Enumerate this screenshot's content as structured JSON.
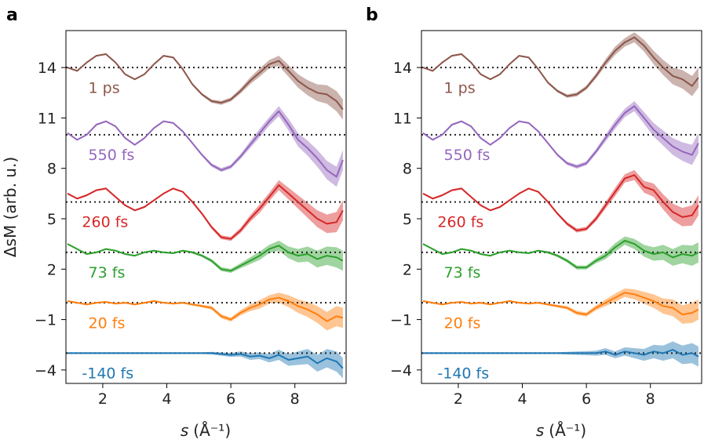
{
  "chart_data": [
    {
      "type": "line",
      "panel": "a",
      "xlabel": "s (Å⁻¹)",
      "xlabel_italic": "s",
      "xlabel_unit": "(Å⁻¹)",
      "ylabel": "ΔsM (arb. u.)",
      "xlim": [
        0.85,
        9.6
      ],
      "ylim": [
        -4.8,
        16.2
      ],
      "xticks": [
        2,
        4,
        6,
        8
      ],
      "xtick_labels": [
        "2",
        "4",
        "6",
        "8"
      ],
      "yticks": [
        -4,
        -1,
        2,
        5,
        8,
        11,
        14
      ],
      "ytick_labels": [
        "−4",
        "−1",
        "2",
        "5",
        "8",
        "11",
        "14"
      ],
      "x": [
        0.9,
        1.2,
        1.5,
        1.8,
        2.1,
        2.4,
        2.7,
        3.0,
        3.3,
        3.6,
        3.9,
        4.2,
        4.5,
        4.8,
        5.1,
        5.4,
        5.7,
        6.0,
        6.3,
        6.6,
        6.9,
        7.2,
        7.5,
        7.8,
        8.1,
        8.4,
        8.7,
        9.0,
        9.3,
        9.5
      ],
      "series": [
        {
          "name": "-140 fs",
          "label": "-140 fs",
          "color": "#1f77b4",
          "baseline": -3.0,
          "values": [
            -3.0,
            -3.0,
            -3.0,
            -3.0,
            -3.0,
            -3.0,
            -3.0,
            -3.0,
            -3.0,
            -3.0,
            -3.0,
            -3.0,
            -3.0,
            -3.0,
            -3.0,
            -3.0,
            -3.05,
            -3.1,
            -3.05,
            -3.2,
            -3.15,
            -3.3,
            -3.1,
            -3.4,
            -3.3,
            -3.2,
            -3.6,
            -3.3,
            -3.5,
            -3.9
          ],
          "band": [
            0.05,
            0.05,
            0.05,
            0.05,
            0.05,
            0.05,
            0.05,
            0.05,
            0.05,
            0.05,
            0.05,
            0.05,
            0.05,
            0.05,
            0.05,
            0.08,
            0.1,
            0.12,
            0.15,
            0.2,
            0.2,
            0.25,
            0.3,
            0.35,
            0.4,
            0.45,
            0.5,
            0.55,
            0.6,
            0.6
          ]
        },
        {
          "name": "20 fs",
          "label": "20 fs",
          "color": "#ff7f0e",
          "baseline": 0.0,
          "values": [
            0.1,
            0.0,
            -0.1,
            0.0,
            0.05,
            -0.05,
            0.0,
            -0.1,
            0.0,
            0.1,
            0.0,
            -0.05,
            0.0,
            -0.1,
            -0.2,
            -0.3,
            -0.8,
            -1.0,
            -0.6,
            -0.3,
            -0.1,
            0.2,
            0.3,
            0.1,
            -0.2,
            -0.4,
            -0.7,
            -1.1,
            -0.8,
            -0.9
          ],
          "band": [
            0.05,
            0.05,
            0.05,
            0.05,
            0.05,
            0.05,
            0.05,
            0.05,
            0.05,
            0.05,
            0.05,
            0.05,
            0.05,
            0.07,
            0.08,
            0.1,
            0.12,
            0.12,
            0.15,
            0.2,
            0.25,
            0.25,
            0.3,
            0.35,
            0.4,
            0.45,
            0.5,
            0.55,
            0.6,
            0.6
          ]
        },
        {
          "name": "73 fs",
          "label": "73 fs",
          "color": "#2ca02c",
          "baseline": 3.0,
          "values": [
            3.5,
            3.2,
            2.9,
            3.0,
            3.2,
            3.1,
            2.9,
            2.8,
            3.0,
            3.1,
            3.0,
            2.95,
            3.1,
            3.0,
            2.8,
            2.5,
            2.0,
            1.9,
            2.2,
            2.5,
            2.8,
            3.2,
            3.4,
            3.0,
            2.8,
            2.9,
            2.6,
            2.8,
            2.7,
            2.5
          ],
          "band": [
            0.05,
            0.05,
            0.05,
            0.05,
            0.05,
            0.05,
            0.05,
            0.05,
            0.05,
            0.05,
            0.05,
            0.05,
            0.05,
            0.07,
            0.08,
            0.1,
            0.12,
            0.12,
            0.15,
            0.2,
            0.25,
            0.25,
            0.3,
            0.35,
            0.4,
            0.45,
            0.5,
            0.55,
            0.6,
            0.6
          ]
        },
        {
          "name": "260 fs",
          "label": "260 fs",
          "color": "#d62728",
          "baseline": 6.0,
          "values": [
            6.5,
            6.2,
            6.4,
            6.7,
            6.8,
            6.3,
            5.8,
            5.5,
            5.7,
            6.1,
            6.5,
            6.8,
            6.6,
            6.0,
            5.3,
            4.5,
            3.9,
            3.8,
            4.3,
            5.0,
            5.6,
            6.3,
            7.0,
            6.5,
            6.0,
            5.5,
            5.0,
            4.7,
            4.8,
            5.5
          ],
          "band": [
            0.05,
            0.05,
            0.05,
            0.05,
            0.05,
            0.05,
            0.05,
            0.05,
            0.05,
            0.05,
            0.05,
            0.05,
            0.05,
            0.07,
            0.08,
            0.1,
            0.12,
            0.12,
            0.15,
            0.2,
            0.25,
            0.25,
            0.3,
            0.35,
            0.4,
            0.45,
            0.5,
            0.55,
            0.6,
            0.6
          ]
        },
        {
          "name": "550 fs",
          "label": "550 fs",
          "color": "#9467bd",
          "baseline": 10.0,
          "values": [
            10.1,
            9.7,
            10.0,
            10.6,
            10.8,
            10.5,
            9.8,
            9.4,
            9.8,
            10.4,
            10.8,
            10.7,
            10.2,
            9.5,
            8.8,
            8.2,
            7.9,
            8.1,
            8.7,
            9.4,
            10.1,
            10.8,
            11.4,
            10.6,
            9.7,
            9.2,
            8.6,
            7.9,
            7.5,
            8.5
          ],
          "band": [
            0.05,
            0.05,
            0.05,
            0.05,
            0.05,
            0.05,
            0.05,
            0.05,
            0.05,
            0.05,
            0.05,
            0.05,
            0.05,
            0.07,
            0.08,
            0.1,
            0.12,
            0.12,
            0.15,
            0.2,
            0.25,
            0.25,
            0.3,
            0.35,
            0.4,
            0.45,
            0.5,
            0.55,
            0.6,
            0.6
          ]
        },
        {
          "name": "1 ps",
          "label": "1 ps",
          "color": "#8c564b",
          "baseline": 14.0,
          "values": [
            14.0,
            13.8,
            14.3,
            14.7,
            14.8,
            14.3,
            13.6,
            13.3,
            13.6,
            14.2,
            14.7,
            14.6,
            13.9,
            13.0,
            12.4,
            12.0,
            11.9,
            12.1,
            12.6,
            13.2,
            13.7,
            14.2,
            14.4,
            13.8,
            13.2,
            12.8,
            12.5,
            12.4,
            12.0,
            11.5
          ],
          "band": [
            0.05,
            0.05,
            0.05,
            0.05,
            0.05,
            0.05,
            0.05,
            0.05,
            0.05,
            0.05,
            0.05,
            0.05,
            0.05,
            0.07,
            0.08,
            0.1,
            0.12,
            0.12,
            0.15,
            0.2,
            0.25,
            0.25,
            0.3,
            0.35,
            0.4,
            0.45,
            0.5,
            0.55,
            0.6,
            0.6
          ]
        }
      ]
    },
    {
      "type": "line",
      "panel": "b",
      "xlabel": "s (Å⁻¹)",
      "xlabel_italic": "s",
      "xlabel_unit": "(Å⁻¹)",
      "ylabel": "",
      "xlim": [
        0.85,
        9.6
      ],
      "ylim": [
        -4.8,
        16.2
      ],
      "xticks": [
        2,
        4,
        6,
        8
      ],
      "xtick_labels": [
        "2",
        "4",
        "6",
        "8"
      ],
      "yticks": [
        -4,
        -1,
        2,
        5,
        8,
        11,
        14
      ],
      "ytick_labels": [
        "−4",
        "−1",
        "2",
        "5",
        "8",
        "11",
        "14"
      ],
      "x": [
        0.9,
        1.2,
        1.5,
        1.8,
        2.1,
        2.4,
        2.7,
        3.0,
        3.3,
        3.6,
        3.9,
        4.2,
        4.5,
        4.8,
        5.1,
        5.4,
        5.7,
        6.0,
        6.3,
        6.6,
        6.9,
        7.2,
        7.5,
        7.8,
        8.1,
        8.4,
        8.7,
        9.0,
        9.3,
        9.5
      ],
      "series": [
        {
          "name": "-140 fs",
          "label": "-140 fs",
          "color": "#1f77b4",
          "baseline": -3.0,
          "values": [
            -3.0,
            -3.0,
            -3.0,
            -3.0,
            -3.0,
            -3.0,
            -3.0,
            -3.0,
            -3.0,
            -3.0,
            -3.0,
            -3.0,
            -3.0,
            -3.0,
            -3.0,
            -3.0,
            -3.0,
            -3.0,
            -3.0,
            -2.9,
            -3.1,
            -2.9,
            -3.0,
            -3.1,
            -2.9,
            -3.0,
            -2.8,
            -3.1,
            -3.0,
            -3.2
          ],
          "band": [
            0.05,
            0.05,
            0.05,
            0.05,
            0.05,
            0.05,
            0.05,
            0.05,
            0.05,
            0.05,
            0.05,
            0.05,
            0.05,
            0.05,
            0.05,
            0.08,
            0.1,
            0.12,
            0.15,
            0.2,
            0.2,
            0.25,
            0.3,
            0.35,
            0.4,
            0.45,
            0.5,
            0.55,
            0.6,
            0.6
          ]
        },
        {
          "name": "20 fs",
          "label": "20 fs",
          "color": "#ff7f0e",
          "baseline": 0.0,
          "values": [
            0.1,
            0.0,
            -0.1,
            0.0,
            0.05,
            -0.05,
            0.0,
            -0.1,
            0.0,
            0.1,
            0.0,
            -0.05,
            0.0,
            -0.1,
            -0.2,
            -0.3,
            -0.6,
            -0.7,
            -0.3,
            0.0,
            0.3,
            0.6,
            0.5,
            0.3,
            0.1,
            -0.2,
            -0.3,
            -0.7,
            -0.6,
            -0.4
          ],
          "band": [
            0.05,
            0.05,
            0.05,
            0.05,
            0.05,
            0.05,
            0.05,
            0.05,
            0.05,
            0.05,
            0.05,
            0.05,
            0.05,
            0.07,
            0.08,
            0.1,
            0.12,
            0.12,
            0.15,
            0.2,
            0.25,
            0.25,
            0.3,
            0.35,
            0.4,
            0.45,
            0.5,
            0.55,
            0.6,
            0.6
          ]
        },
        {
          "name": "73 fs",
          "label": "73 fs",
          "color": "#2ca02c",
          "baseline": 3.0,
          "values": [
            3.5,
            3.2,
            2.9,
            3.0,
            3.2,
            3.1,
            2.9,
            2.8,
            3.0,
            3.1,
            3.0,
            2.95,
            3.1,
            3.0,
            2.8,
            2.5,
            2.1,
            2.1,
            2.5,
            2.8,
            3.3,
            3.7,
            3.5,
            3.1,
            2.9,
            3.0,
            2.7,
            2.9,
            2.8,
            3.0
          ],
          "band": [
            0.05,
            0.05,
            0.05,
            0.05,
            0.05,
            0.05,
            0.05,
            0.05,
            0.05,
            0.05,
            0.05,
            0.05,
            0.05,
            0.07,
            0.08,
            0.1,
            0.12,
            0.12,
            0.15,
            0.2,
            0.25,
            0.25,
            0.3,
            0.35,
            0.4,
            0.45,
            0.5,
            0.55,
            0.6,
            0.6
          ]
        },
        {
          "name": "260 fs",
          "label": "260 fs",
          "color": "#d62728",
          "baseline": 6.0,
          "values": [
            6.5,
            6.2,
            6.4,
            6.7,
            6.8,
            6.3,
            5.8,
            5.5,
            5.7,
            6.1,
            6.5,
            6.8,
            6.6,
            6.0,
            5.3,
            4.7,
            4.3,
            4.4,
            5.0,
            5.8,
            6.6,
            7.4,
            7.6,
            6.9,
            6.7,
            6.0,
            5.4,
            5.1,
            5.2,
            5.8
          ],
          "band": [
            0.05,
            0.05,
            0.05,
            0.05,
            0.05,
            0.05,
            0.05,
            0.05,
            0.05,
            0.05,
            0.05,
            0.05,
            0.05,
            0.07,
            0.08,
            0.1,
            0.12,
            0.12,
            0.15,
            0.2,
            0.25,
            0.25,
            0.3,
            0.35,
            0.4,
            0.45,
            0.5,
            0.55,
            0.6,
            0.6
          ]
        },
        {
          "name": "550 fs",
          "label": "550 fs",
          "color": "#9467bd",
          "baseline": 10.0,
          "values": [
            10.1,
            9.7,
            10.0,
            10.6,
            10.8,
            10.5,
            9.8,
            9.4,
            9.8,
            10.4,
            10.8,
            10.7,
            10.2,
            9.5,
            8.8,
            8.3,
            8.1,
            8.3,
            9.0,
            9.8,
            10.6,
            11.3,
            11.7,
            11.0,
            10.3,
            9.8,
            9.3,
            9.0,
            8.8,
            9.5
          ],
          "band": [
            0.05,
            0.05,
            0.05,
            0.05,
            0.05,
            0.05,
            0.05,
            0.05,
            0.05,
            0.05,
            0.05,
            0.05,
            0.05,
            0.07,
            0.08,
            0.1,
            0.12,
            0.12,
            0.15,
            0.2,
            0.25,
            0.25,
            0.3,
            0.35,
            0.4,
            0.45,
            0.5,
            0.55,
            0.6,
            0.6
          ]
        },
        {
          "name": "1 ps",
          "label": "1 ps",
          "color": "#8c564b",
          "baseline": 14.0,
          "values": [
            14.0,
            13.8,
            14.3,
            14.7,
            14.8,
            14.3,
            13.6,
            13.3,
            13.6,
            14.2,
            14.7,
            14.6,
            13.9,
            13.1,
            12.6,
            12.3,
            12.4,
            12.8,
            13.5,
            14.3,
            15.0,
            15.5,
            15.8,
            15.3,
            14.6,
            14.0,
            13.5,
            13.3,
            12.9,
            13.4
          ],
          "band": [
            0.05,
            0.05,
            0.05,
            0.05,
            0.05,
            0.05,
            0.05,
            0.05,
            0.05,
            0.05,
            0.05,
            0.05,
            0.05,
            0.07,
            0.08,
            0.1,
            0.12,
            0.12,
            0.15,
            0.2,
            0.25,
            0.25,
            0.3,
            0.35,
            0.4,
            0.45,
            0.5,
            0.55,
            0.6,
            0.6
          ]
        }
      ]
    }
  ]
}
